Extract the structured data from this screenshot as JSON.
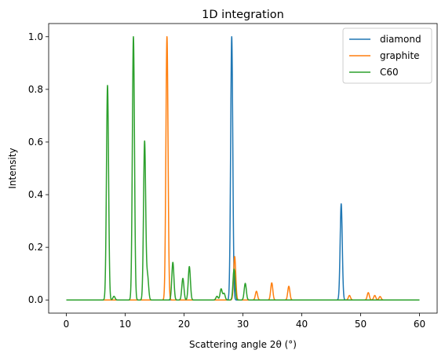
{
  "chart_data": {
    "type": "line",
    "title": "1D integration",
    "xlabel": "Scattering angle 2θ (°)",
    "ylabel": "Intensity",
    "xlim": [
      -3,
      63
    ],
    "ylim": [
      -0.05,
      1.05
    ],
    "xticks": [
      0,
      10,
      20,
      30,
      40,
      50,
      60
    ],
    "xtick_labels": [
      "0",
      "10",
      "20",
      "30",
      "40",
      "50",
      "60"
    ],
    "yticks": [
      0.0,
      0.2,
      0.4,
      0.6,
      0.8,
      1.0
    ],
    "ytick_labels": [
      "0.0",
      "0.2",
      "0.4",
      "0.6",
      "0.8",
      "1.0"
    ],
    "grid": false,
    "legend_position": "top-right",
    "x_range": [
      0,
      60
    ],
    "peak_width_deg": 0.18,
    "series": [
      {
        "name": "diamond",
        "color": "#1f77b4",
        "peaks": [
          {
            "x": 28.1,
            "y": 1.0
          },
          {
            "x": 46.7,
            "y": 0.365
          }
        ]
      },
      {
        "name": "graphite",
        "color": "#ff7f0e",
        "peaks": [
          {
            "x": 17.1,
            "y": 1.0
          },
          {
            "x": 28.6,
            "y": 0.165
          },
          {
            "x": 32.3,
            "y": 0.033
          },
          {
            "x": 34.9,
            "y": 0.065
          },
          {
            "x": 37.8,
            "y": 0.052
          },
          {
            "x": 48.1,
            "y": 0.017
          },
          {
            "x": 51.3,
            "y": 0.028
          },
          {
            "x": 52.4,
            "y": 0.017
          },
          {
            "x": 53.3,
            "y": 0.013
          }
        ]
      },
      {
        "name": "C60",
        "color": "#2ca02c",
        "peaks": [
          {
            "x": 7.0,
            "y": 0.815
          },
          {
            "x": 8.1,
            "y": 0.014
          },
          {
            "x": 11.4,
            "y": 1.0
          },
          {
            "x": 13.3,
            "y": 0.602
          },
          {
            "x": 13.8,
            "y": 0.09
          },
          {
            "x": 18.1,
            "y": 0.143
          },
          {
            "x": 19.8,
            "y": 0.082
          },
          {
            "x": 20.9,
            "y": 0.127
          },
          {
            "x": 25.6,
            "y": 0.014
          },
          {
            "x": 26.3,
            "y": 0.042
          },
          {
            "x": 26.8,
            "y": 0.025
          },
          {
            "x": 28.5,
            "y": 0.117
          },
          {
            "x": 30.4,
            "y": 0.063
          }
        ]
      }
    ]
  }
}
